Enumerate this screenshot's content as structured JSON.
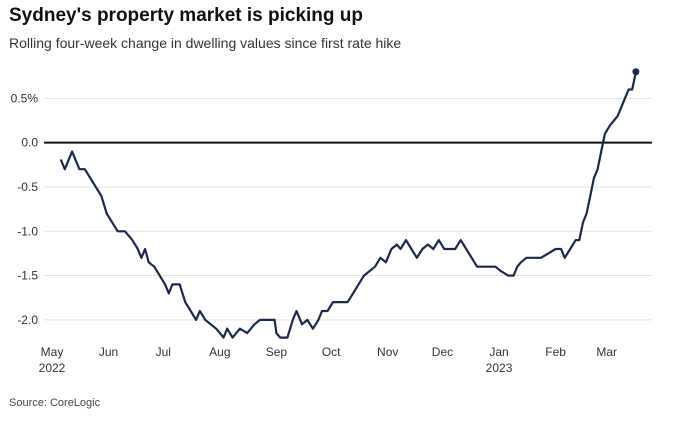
{
  "chart_data": {
    "type": "line",
    "title": "Sydney's property market is picking up",
    "subtitle": "Rolling four-week change in dwelling values since first rate hike",
    "source": "Source: CoreLogic",
    "y_unit": "%",
    "ylim": [
      -2.25,
      0.82
    ],
    "y_ticks": [
      {
        "value": 0.5,
        "label": "0.5%"
      },
      {
        "value": 0.0,
        "label": "0.0"
      },
      {
        "value": -0.5,
        "label": "-0.5"
      },
      {
        "value": -1.0,
        "label": "-1.0"
      },
      {
        "value": -1.5,
        "label": "-1.5"
      },
      {
        "value": -2.0,
        "label": "-2.0"
      }
    ],
    "x_ticks": [
      {
        "date": "2022-05-01",
        "label": "May",
        "year": "2022"
      },
      {
        "date": "2022-06-01",
        "label": "Jun",
        "year": ""
      },
      {
        "date": "2022-07-01",
        "label": "Jul",
        "year": ""
      },
      {
        "date": "2022-08-01",
        "label": "Aug",
        "year": ""
      },
      {
        "date": "2022-09-01",
        "label": "Sep",
        "year": ""
      },
      {
        "date": "2022-10-01",
        "label": "Oct",
        "year": ""
      },
      {
        "date": "2022-11-01",
        "label": "Nov",
        "year": ""
      },
      {
        "date": "2022-12-01",
        "label": "Dec",
        "year": ""
      },
      {
        "date": "2023-01-01",
        "label": "Jan",
        "year": "2023"
      },
      {
        "date": "2023-02-01",
        "label": "Feb",
        "year": ""
      },
      {
        "date": "2023-03-01",
        "label": "Mar",
        "year": ""
      }
    ],
    "xlim": [
      "2022-05-01",
      "2023-03-22"
    ],
    "grid": true,
    "zero_line": true,
    "line_color": "#1b2a4a",
    "grid_color": "#e3e3e3",
    "series": [
      {
        "points": [
          [
            "2022-05-06",
            -0.2
          ],
          [
            "2022-05-08",
            -0.3
          ],
          [
            "2022-05-10",
            -0.2
          ],
          [
            "2022-05-12",
            -0.1
          ],
          [
            "2022-05-14",
            -0.2
          ],
          [
            "2022-05-16",
            -0.3
          ],
          [
            "2022-05-19",
            -0.3
          ],
          [
            "2022-05-22",
            -0.4
          ],
          [
            "2022-05-25",
            -0.5
          ],
          [
            "2022-05-28",
            -0.6
          ],
          [
            "2022-05-31",
            -0.8
          ],
          [
            "2022-06-03",
            -0.9
          ],
          [
            "2022-06-06",
            -1.0
          ],
          [
            "2022-06-10",
            -1.0
          ],
          [
            "2022-06-14",
            -1.1
          ],
          [
            "2022-06-17",
            -1.2
          ],
          [
            "2022-06-19",
            -1.3
          ],
          [
            "2022-06-21",
            -1.2
          ],
          [
            "2022-06-23",
            -1.35
          ],
          [
            "2022-06-26",
            -1.4
          ],
          [
            "2022-06-29",
            -1.5
          ],
          [
            "2022-07-02",
            -1.6
          ],
          [
            "2022-07-04",
            -1.7
          ],
          [
            "2022-07-06",
            -1.6
          ],
          [
            "2022-07-10",
            -1.6
          ],
          [
            "2022-07-13",
            -1.8
          ],
          [
            "2022-07-16",
            -1.9
          ],
          [
            "2022-07-19",
            -2.0
          ],
          [
            "2022-07-21",
            -1.9
          ],
          [
            "2022-07-24",
            -2.0
          ],
          [
            "2022-07-27",
            -2.05
          ],
          [
            "2022-07-30",
            -2.1
          ],
          [
            "2022-08-01",
            -2.15
          ],
          [
            "2022-08-03",
            -2.2
          ],
          [
            "2022-08-05",
            -2.1
          ],
          [
            "2022-08-08",
            -2.2
          ],
          [
            "2022-08-12",
            -2.1
          ],
          [
            "2022-08-16",
            -2.15
          ],
          [
            "2022-08-20",
            -2.05
          ],
          [
            "2022-08-23",
            -2.0
          ],
          [
            "2022-08-27",
            -2.0
          ],
          [
            "2022-08-31",
            -2.0
          ],
          [
            "2022-09-01",
            -2.15
          ],
          [
            "2022-09-03",
            -2.2
          ],
          [
            "2022-09-07",
            -2.2
          ],
          [
            "2022-09-10",
            -2.0
          ],
          [
            "2022-09-12",
            -1.9
          ],
          [
            "2022-09-15",
            -2.05
          ],
          [
            "2022-09-18",
            -2.0
          ],
          [
            "2022-09-21",
            -2.1
          ],
          [
            "2022-09-24",
            -2.0
          ],
          [
            "2022-09-26",
            -1.9
          ],
          [
            "2022-09-29",
            -1.9
          ],
          [
            "2022-10-02",
            -1.8
          ],
          [
            "2022-10-06",
            -1.8
          ],
          [
            "2022-10-10",
            -1.8
          ],
          [
            "2022-10-13",
            -1.7
          ],
          [
            "2022-10-16",
            -1.6
          ],
          [
            "2022-10-19",
            -1.5
          ],
          [
            "2022-10-22",
            -1.45
          ],
          [
            "2022-10-25",
            -1.4
          ],
          [
            "2022-10-28",
            -1.3
          ],
          [
            "2022-10-31",
            -1.35
          ],
          [
            "2022-11-03",
            -1.2
          ],
          [
            "2022-11-06",
            -1.15
          ],
          [
            "2022-11-08",
            -1.2
          ],
          [
            "2022-11-11",
            -1.1
          ],
          [
            "2022-11-14",
            -1.2
          ],
          [
            "2022-11-17",
            -1.3
          ],
          [
            "2022-11-20",
            -1.2
          ],
          [
            "2022-11-23",
            -1.15
          ],
          [
            "2022-11-26",
            -1.2
          ],
          [
            "2022-11-29",
            -1.1
          ],
          [
            "2022-12-02",
            -1.2
          ],
          [
            "2022-12-05",
            -1.2
          ],
          [
            "2022-12-08",
            -1.2
          ],
          [
            "2022-12-11",
            -1.1
          ],
          [
            "2022-12-14",
            -1.2
          ],
          [
            "2022-12-17",
            -1.3
          ],
          [
            "2022-12-20",
            -1.4
          ],
          [
            "2022-12-23",
            -1.4
          ],
          [
            "2022-12-26",
            -1.4
          ],
          [
            "2022-12-30",
            -1.4
          ],
          [
            "2023-01-02",
            -1.45
          ],
          [
            "2023-01-06",
            -1.5
          ],
          [
            "2023-01-09",
            -1.5
          ],
          [
            "2023-01-11",
            -1.4
          ],
          [
            "2023-01-13",
            -1.35
          ],
          [
            "2023-01-16",
            -1.3
          ],
          [
            "2023-01-20",
            -1.3
          ],
          [
            "2023-01-24",
            -1.3
          ],
          [
            "2023-01-28",
            -1.25
          ],
          [
            "2023-02-01",
            -1.2
          ],
          [
            "2023-02-04",
            -1.2
          ],
          [
            "2023-02-06",
            -1.3
          ],
          [
            "2023-02-09",
            -1.2
          ],
          [
            "2023-02-12",
            -1.1
          ],
          [
            "2023-02-14",
            -1.1
          ],
          [
            "2023-02-16",
            -0.9
          ],
          [
            "2023-02-18",
            -0.8
          ],
          [
            "2023-02-20",
            -0.6
          ],
          [
            "2023-02-22",
            -0.4
          ],
          [
            "2023-02-24",
            -0.3
          ],
          [
            "2023-02-26",
            -0.1
          ],
          [
            "2023-02-28",
            0.1
          ],
          [
            "2023-03-03",
            0.2
          ],
          [
            "2023-03-05",
            0.25
          ],
          [
            "2023-03-07",
            0.3
          ],
          [
            "2023-03-09",
            0.4
          ],
          [
            "2023-03-11",
            0.5
          ],
          [
            "2023-03-13",
            0.6
          ],
          [
            "2023-03-15",
            0.6
          ],
          [
            "2023-03-17",
            0.8
          ]
        ]
      }
    ]
  }
}
